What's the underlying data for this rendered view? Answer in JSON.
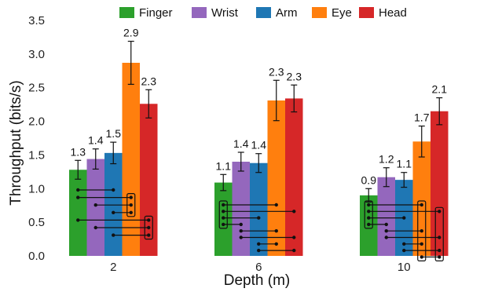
{
  "chart_data": {
    "type": "bar",
    "xlabel": "Depth (m)",
    "ylabel": "Throughput (bits/s)",
    "ylim": [
      0,
      3.5
    ],
    "yticks": [
      "0.0",
      "0.5",
      "1.0",
      "1.5",
      "2.0",
      "2.5",
      "3.0",
      "3.5"
    ],
    "grid": false,
    "legend_position": "top",
    "categories": [
      "2",
      "6",
      "10"
    ],
    "series": [
      {
        "name": "Finger",
        "color": "#2ca02c",
        "values": [
          1.28,
          1.09,
          0.9
        ],
        "errors": [
          0.14,
          0.12,
          0.1
        ],
        "labels": [
          "1.3",
          "1.1",
          "0.9"
        ]
      },
      {
        "name": "Wrist",
        "color": "#9467bd",
        "values": [
          1.44,
          1.4,
          1.17
        ],
        "errors": [
          0.15,
          0.14,
          0.14
        ],
        "labels": [
          "1.4",
          "1.4",
          "1.2"
        ]
      },
      {
        "name": "Arm",
        "color": "#1f77b4",
        "values": [
          1.53,
          1.38,
          1.13
        ],
        "errors": [
          0.16,
          0.14,
          0.11
        ],
        "labels": [
          "1.5",
          "1.4",
          "1.1"
        ]
      },
      {
        "name": "Eye",
        "color": "#ff7f0e",
        "values": [
          2.87,
          2.31,
          1.7
        ],
        "errors": [
          0.32,
          0.3,
          0.23
        ],
        "labels": [
          "2.9",
          "2.3",
          "1.7"
        ]
      },
      {
        "name": "Head",
        "color": "#d62728",
        "values": [
          2.26,
          2.34,
          2.15
        ],
        "errors": [
          0.21,
          0.2,
          0.2
        ],
        "labels": [
          "2.3",
          "2.3",
          "2.1"
        ]
      }
    ],
    "significance": [
      {
        "group": 0,
        "boxes": [
          [
            3,
            4
          ],
          [
            4,
            2
          ]
        ],
        "lines": [
          [
            0,
            2
          ],
          [
            0,
            3
          ],
          [
            1,
            3
          ],
          [
            2,
            3
          ],
          [
            0,
            4
          ],
          [
            1,
            4
          ],
          [
            2,
            4
          ]
        ]
      },
      {
        "group": 1,
        "boxes": [
          [
            0,
            4
          ]
        ],
        "lines": [
          [
            0,
            3
          ],
          [
            0,
            4
          ],
          [
            0,
            2
          ],
          [
            0,
            1
          ],
          [
            1,
            3
          ],
          [
            1,
            4
          ],
          [
            2,
            3
          ],
          [
            2,
            4
          ]
        ]
      },
      {
        "group": 2,
        "boxes": [
          [
            0,
            4
          ],
          [
            3,
            5
          ],
          [
            4,
            3
          ]
        ],
        "lines": [
          [
            0,
            3
          ],
          [
            0,
            4
          ],
          [
            0,
            2
          ],
          [
            0,
            1
          ],
          [
            1,
            3
          ],
          [
            1,
            4
          ],
          [
            2,
            3
          ],
          [
            2,
            4
          ],
          [
            3,
            4
          ]
        ]
      }
    ]
  }
}
